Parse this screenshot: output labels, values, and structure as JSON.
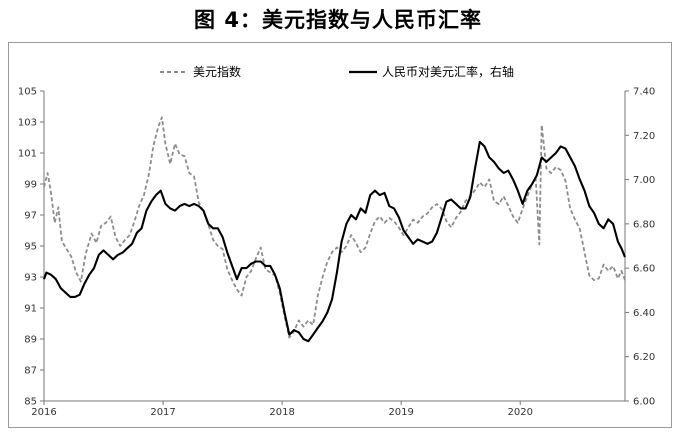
{
  "figure_title": "图 4：美元指数与人民币汇率",
  "chart_data": {
    "type": "line",
    "title": "图 4：美元指数与人民币汇率",
    "x_ticks": [
      "2016",
      "2017",
      "2018",
      "2019",
      "2020"
    ],
    "xlim": [
      2016.0,
      2020.88
    ],
    "left_axis": {
      "ylim": [
        85,
        105
      ],
      "ticks": [
        "85",
        "87",
        "89",
        "91",
        "93",
        "95",
        "97",
        "99",
        "101",
        "103",
        "105"
      ]
    },
    "right_axis": {
      "ylim": [
        6.0,
        7.4
      ],
      "ticks": [
        "6.00",
        "6.20",
        "6.40",
        "6.60",
        "6.80",
        "7.00",
        "7.20",
        "7.40"
      ]
    },
    "grid": false,
    "legend_position": "top",
    "series": [
      {
        "name": "美元指数",
        "axis": "left",
        "style": "dashed",
        "color": "#8c8c8c",
        "points": [
          [
            2016.0,
            98.8
          ],
          [
            2016.03,
            99.7
          ],
          [
            2016.06,
            98.4
          ],
          [
            2016.09,
            96.5
          ],
          [
            2016.12,
            97.5
          ],
          [
            2016.15,
            95.3
          ],
          [
            2016.19,
            94.8
          ],
          [
            2016.23,
            94.3
          ],
          [
            2016.27,
            93.3
          ],
          [
            2016.31,
            92.7
          ],
          [
            2016.35,
            94.5
          ],
          [
            2016.4,
            95.8
          ],
          [
            2016.44,
            95.2
          ],
          [
            2016.48,
            96.3
          ],
          [
            2016.52,
            96.5
          ],
          [
            2016.56,
            96.9
          ],
          [
            2016.6,
            95.6
          ],
          [
            2016.64,
            95.0
          ],
          [
            2016.68,
            95.4
          ],
          [
            2016.72,
            95.7
          ],
          [
            2016.76,
            96.6
          ],
          [
            2016.8,
            97.6
          ],
          [
            2016.84,
            98.3
          ],
          [
            2016.88,
            99.6
          ],
          [
            2016.92,
            101.5
          ],
          [
            2016.96,
            102.7
          ],
          [
            2016.99,
            103.3
          ],
          [
            2017.02,
            101.6
          ],
          [
            2017.06,
            100.3
          ],
          [
            2017.1,
            101.6
          ],
          [
            2017.14,
            100.9
          ],
          [
            2017.18,
            100.8
          ],
          [
            2017.22,
            99.7
          ],
          [
            2017.26,
            99.5
          ],
          [
            2017.3,
            97.8
          ],
          [
            2017.34,
            97.2
          ],
          [
            2017.38,
            96.4
          ],
          [
            2017.42,
            95.4
          ],
          [
            2017.46,
            95.0
          ],
          [
            2017.5,
            94.8
          ],
          [
            2017.54,
            93.5
          ],
          [
            2017.58,
            92.8
          ],
          [
            2017.62,
            92.2
          ],
          [
            2017.66,
            91.8
          ],
          [
            2017.7,
            93.0
          ],
          [
            2017.74,
            93.4
          ],
          [
            2017.78,
            94.2
          ],
          [
            2017.82,
            94.9
          ],
          [
            2017.86,
            93.5
          ],
          [
            2017.9,
            93.3
          ],
          [
            2017.94,
            93.1
          ],
          [
            2017.98,
            92.0
          ],
          [
            2018.02,
            90.5
          ],
          [
            2018.06,
            89.1
          ],
          [
            2018.1,
            89.5
          ],
          [
            2018.14,
            90.2
          ],
          [
            2018.18,
            89.8
          ],
          [
            2018.22,
            90.2
          ],
          [
            2018.26,
            89.9
          ],
          [
            2018.3,
            91.8
          ],
          [
            2018.34,
            93.0
          ],
          [
            2018.38,
            94.0
          ],
          [
            2018.42,
            94.6
          ],
          [
            2018.46,
            94.9
          ],
          [
            2018.5,
            94.6
          ],
          [
            2018.54,
            95.0
          ],
          [
            2018.58,
            95.7
          ],
          [
            2018.62,
            95.2
          ],
          [
            2018.66,
            94.6
          ],
          [
            2018.7,
            94.9
          ],
          [
            2018.74,
            95.8
          ],
          [
            2018.78,
            96.6
          ],
          [
            2018.82,
            96.9
          ],
          [
            2018.86,
            96.5
          ],
          [
            2018.9,
            96.8
          ],
          [
            2018.94,
            96.6
          ],
          [
            2018.98,
            96.2
          ],
          [
            2019.02,
            95.7
          ],
          [
            2019.06,
            96.2
          ],
          [
            2019.1,
            96.7
          ],
          [
            2019.14,
            96.5
          ],
          [
            2019.18,
            96.9
          ],
          [
            2019.22,
            97.1
          ],
          [
            2019.26,
            97.5
          ],
          [
            2019.3,
            97.7
          ],
          [
            2019.34,
            97.4
          ],
          [
            2019.38,
            96.6
          ],
          [
            2019.42,
            96.2
          ],
          [
            2019.46,
            96.8
          ],
          [
            2019.5,
            97.2
          ],
          [
            2019.54,
            97.9
          ],
          [
            2019.58,
            98.2
          ],
          [
            2019.62,
            98.6
          ],
          [
            2019.66,
            99.1
          ],
          [
            2019.7,
            98.8
          ],
          [
            2019.74,
            99.3
          ],
          [
            2019.78,
            97.9
          ],
          [
            2019.82,
            97.7
          ],
          [
            2019.86,
            98.2
          ],
          [
            2019.9,
            97.6
          ],
          [
            2019.94,
            96.9
          ],
          [
            2019.98,
            96.5
          ],
          [
            2020.02,
            97.4
          ],
          [
            2020.06,
            98.2
          ],
          [
            2020.1,
            99.0
          ],
          [
            2020.13,
            99.4
          ],
          [
            2020.16,
            95.1
          ],
          [
            2020.18,
            102.8
          ],
          [
            2020.22,
            100.0
          ],
          [
            2020.26,
            99.7
          ],
          [
            2020.3,
            100.1
          ],
          [
            2020.34,
            99.9
          ],
          [
            2020.38,
            99.2
          ],
          [
            2020.42,
            97.4
          ],
          [
            2020.46,
            96.7
          ],
          [
            2020.5,
            96.1
          ],
          [
            2020.54,
            94.6
          ],
          [
            2020.58,
            93.1
          ],
          [
            2020.62,
            92.8
          ],
          [
            2020.66,
            92.9
          ],
          [
            2020.7,
            93.8
          ],
          [
            2020.74,
            93.4
          ],
          [
            2020.78,
            93.7
          ],
          [
            2020.82,
            92.9
          ],
          [
            2020.85,
            93.4
          ],
          [
            2020.88,
            92.8
          ]
        ]
      },
      {
        "name": "人民币对美元汇率，右轴",
        "axis": "right",
        "style": "solid",
        "color": "#000000",
        "points": [
          [
            2016.0,
            6.55
          ],
          [
            2016.02,
            6.58
          ],
          [
            2016.06,
            6.57
          ],
          [
            2016.1,
            6.55
          ],
          [
            2016.14,
            6.51
          ],
          [
            2016.18,
            6.49
          ],
          [
            2016.22,
            6.47
          ],
          [
            2016.26,
            6.47
          ],
          [
            2016.3,
            6.48
          ],
          [
            2016.34,
            6.53
          ],
          [
            2016.38,
            6.57
          ],
          [
            2016.42,
            6.6
          ],
          [
            2016.46,
            6.66
          ],
          [
            2016.5,
            6.68
          ],
          [
            2016.54,
            6.66
          ],
          [
            2016.58,
            6.64
          ],
          [
            2016.62,
            6.66
          ],
          [
            2016.66,
            6.67
          ],
          [
            2016.7,
            6.69
          ],
          [
            2016.74,
            6.71
          ],
          [
            2016.78,
            6.76
          ],
          [
            2016.82,
            6.78
          ],
          [
            2016.86,
            6.86
          ],
          [
            2016.9,
            6.9
          ],
          [
            2016.94,
            6.93
          ],
          [
            2016.98,
            6.95
          ],
          [
            2017.02,
            6.89
          ],
          [
            2017.06,
            6.87
          ],
          [
            2017.1,
            6.86
          ],
          [
            2017.14,
            6.88
          ],
          [
            2017.18,
            6.89
          ],
          [
            2017.22,
            6.88
          ],
          [
            2017.26,
            6.89
          ],
          [
            2017.3,
            6.88
          ],
          [
            2017.34,
            6.86
          ],
          [
            2017.38,
            6.8
          ],
          [
            2017.42,
            6.78
          ],
          [
            2017.46,
            6.78
          ],
          [
            2017.5,
            6.74
          ],
          [
            2017.54,
            6.67
          ],
          [
            2017.58,
            6.61
          ],
          [
            2017.62,
            6.55
          ],
          [
            2017.66,
            6.6
          ],
          [
            2017.7,
            6.6
          ],
          [
            2017.74,
            6.62
          ],
          [
            2017.78,
            6.63
          ],
          [
            2017.82,
            6.63
          ],
          [
            2017.86,
            6.61
          ],
          [
            2017.9,
            6.61
          ],
          [
            2017.94,
            6.57
          ],
          [
            2017.98,
            6.51
          ],
          [
            2018.02,
            6.4
          ],
          [
            2018.06,
            6.3
          ],
          [
            2018.1,
            6.32
          ],
          [
            2018.14,
            6.31
          ],
          [
            2018.18,
            6.28
          ],
          [
            2018.22,
            6.27
          ],
          [
            2018.26,
            6.3
          ],
          [
            2018.3,
            6.33
          ],
          [
            2018.34,
            6.36
          ],
          [
            2018.38,
            6.4
          ],
          [
            2018.42,
            6.46
          ],
          [
            2018.46,
            6.58
          ],
          [
            2018.5,
            6.72
          ],
          [
            2018.54,
            6.8
          ],
          [
            2018.58,
            6.84
          ],
          [
            2018.62,
            6.82
          ],
          [
            2018.66,
            6.87
          ],
          [
            2018.7,
            6.85
          ],
          [
            2018.74,
            6.93
          ],
          [
            2018.78,
            6.95
          ],
          [
            2018.82,
            6.93
          ],
          [
            2018.86,
            6.94
          ],
          [
            2018.9,
            6.88
          ],
          [
            2018.94,
            6.87
          ],
          [
            2018.98,
            6.83
          ],
          [
            2019.02,
            6.77
          ],
          [
            2019.06,
            6.74
          ],
          [
            2019.1,
            6.71
          ],
          [
            2019.14,
            6.73
          ],
          [
            2019.18,
            6.72
          ],
          [
            2019.22,
            6.71
          ],
          [
            2019.26,
            6.72
          ],
          [
            2019.3,
            6.76
          ],
          [
            2019.34,
            6.83
          ],
          [
            2019.38,
            6.9
          ],
          [
            2019.42,
            6.91
          ],
          [
            2019.46,
            6.89
          ],
          [
            2019.5,
            6.87
          ],
          [
            2019.54,
            6.87
          ],
          [
            2019.58,
            6.92
          ],
          [
            2019.62,
            7.05
          ],
          [
            2019.66,
            7.17
          ],
          [
            2019.7,
            7.15
          ],
          [
            2019.74,
            7.1
          ],
          [
            2019.78,
            7.08
          ],
          [
            2019.82,
            7.05
          ],
          [
            2019.86,
            7.03
          ],
          [
            2019.9,
            7.04
          ],
          [
            2019.94,
            7.0
          ],
          [
            2019.98,
            6.95
          ],
          [
            2020.02,
            6.89
          ],
          [
            2020.06,
            6.95
          ],
          [
            2020.1,
            6.98
          ],
          [
            2020.14,
            7.02
          ],
          [
            2020.18,
            7.1
          ],
          [
            2020.22,
            7.08
          ],
          [
            2020.26,
            7.1
          ],
          [
            2020.3,
            7.12
          ],
          [
            2020.34,
            7.15
          ],
          [
            2020.38,
            7.14
          ],
          [
            2020.42,
            7.1
          ],
          [
            2020.46,
            7.06
          ],
          [
            2020.5,
            7.0
          ],
          [
            2020.54,
            6.95
          ],
          [
            2020.58,
            6.88
          ],
          [
            2020.62,
            6.85
          ],
          [
            2020.66,
            6.8
          ],
          [
            2020.7,
            6.78
          ],
          [
            2020.74,
            6.82
          ],
          [
            2020.78,
            6.8
          ],
          [
            2020.82,
            6.72
          ],
          [
            2020.85,
            6.69
          ],
          [
            2020.88,
            6.65
          ]
        ]
      }
    ]
  }
}
